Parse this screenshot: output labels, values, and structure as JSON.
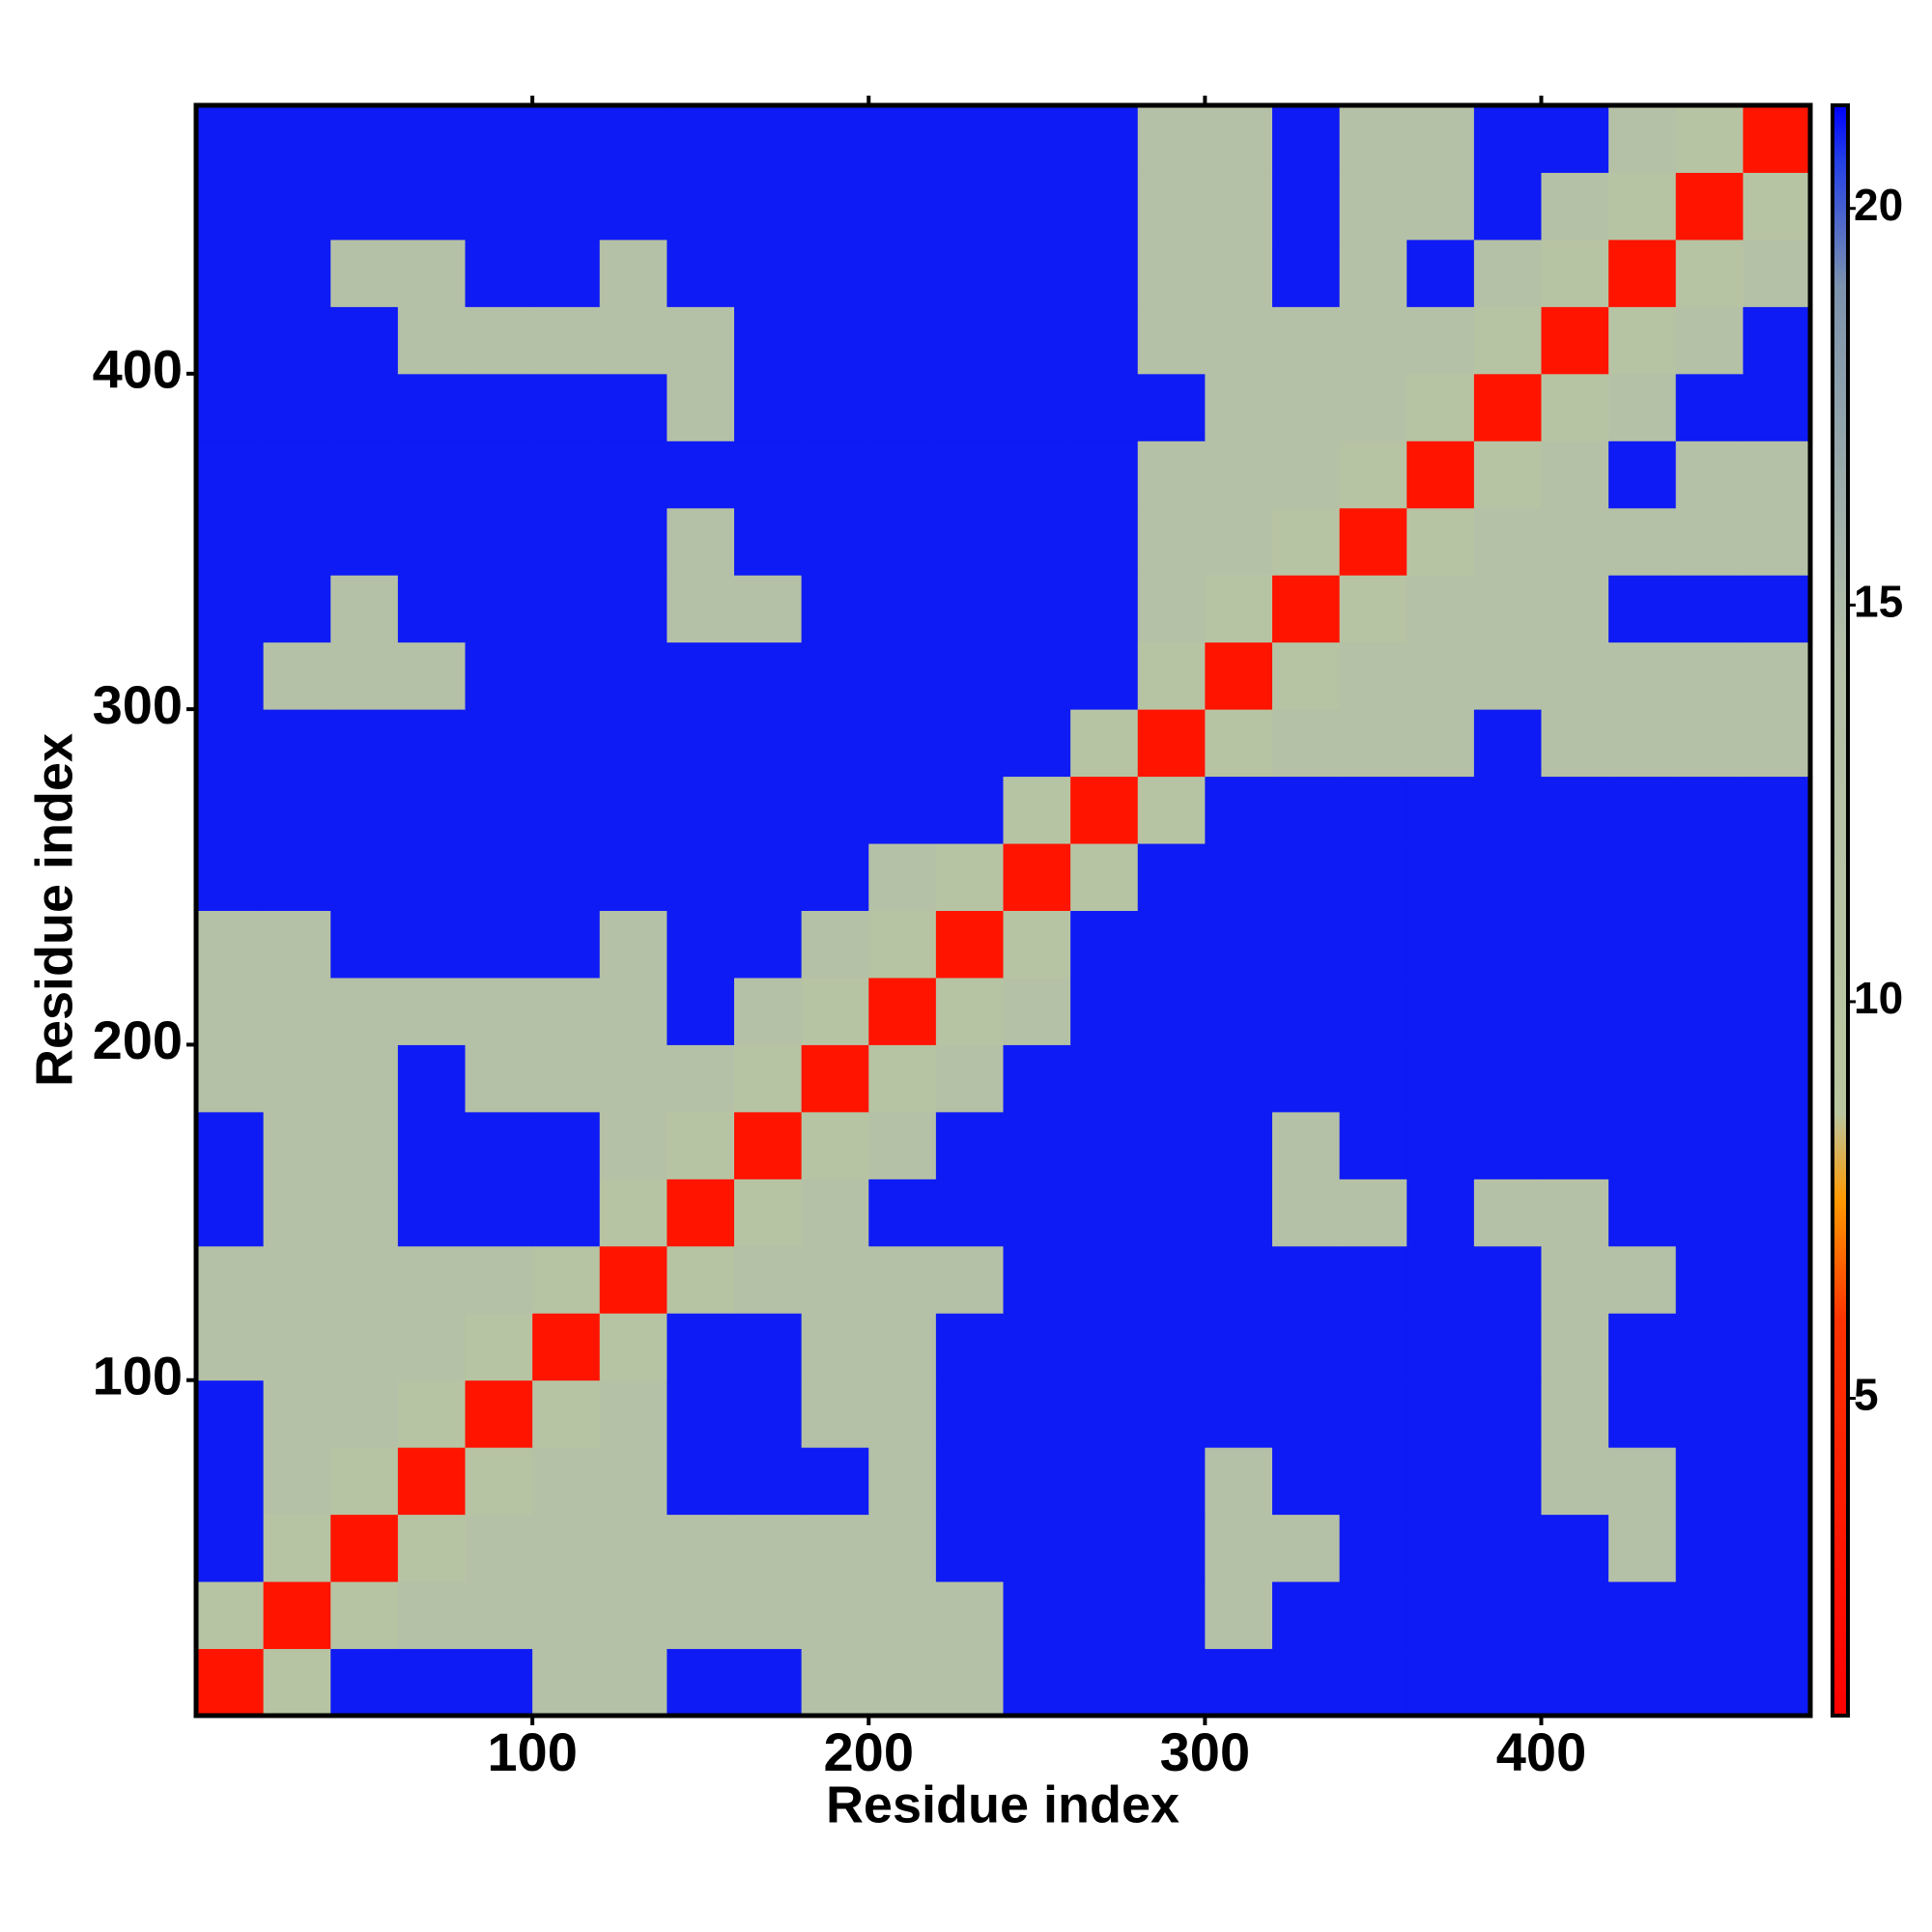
{
  "chart_data": {
    "type": "heatmap",
    "x_label": "Residue index",
    "y_label": "Residue index",
    "xlim": [
      0,
      480
    ],
    "ylim": [
      0,
      480
    ],
    "xticks": [
      100,
      200,
      300,
      400
    ],
    "yticks": [
      100,
      200,
      300,
      400
    ],
    "xbins": [
      0,
      20,
      40,
      60,
      80,
      100,
      120,
      140,
      160,
      180,
      200,
      220,
      240,
      260,
      280,
      300,
      320,
      340,
      360,
      380,
      400,
      420,
      440,
      460,
      480
    ],
    "ybins": [
      0,
      20,
      40,
      60,
      80,
      100,
      120,
      140,
      160,
      180,
      200,
      220,
      240,
      260,
      280,
      300,
      320,
      340,
      360,
      380,
      400,
      420,
      440,
      460,
      480
    ],
    "zlim": [
      1,
      21.3
    ],
    "zticks": [
      5,
      10,
      15,
      20
    ],
    "colorscale": [
      [
        1,
        "#ff0000"
      ],
      [
        6,
        "#ff3300"
      ],
      [
        7.5,
        "#ff9900"
      ],
      [
        8.6,
        "#b9c7a0"
      ],
      [
        14.5,
        "#b3bfa8"
      ],
      [
        19,
        "#7d93ad"
      ],
      [
        20.6,
        "#2340e6"
      ],
      [
        21.3,
        "#0000ff"
      ]
    ],
    "z": [
      [
        3,
        11,
        21,
        21,
        21,
        13,
        13,
        21,
        21,
        13,
        13,
        13,
        21,
        21,
        21,
        21,
        21,
        21,
        21,
        21,
        21,
        21,
        21,
        21
      ],
      [
        11,
        3,
        11,
        13,
        13,
        13,
        13,
        13,
        13,
        13,
        13,
        13,
        21,
        21,
        21,
        13,
        21,
        21,
        21,
        21,
        21,
        21,
        21,
        21
      ],
      [
        21,
        11,
        3,
        11,
        13,
        13,
        13,
        13,
        13,
        13,
        13,
        21,
        21,
        21,
        21,
        13,
        13,
        21,
        21,
        21,
        21,
        13,
        21,
        21
      ],
      [
        21,
        13,
        11,
        3,
        11,
        13,
        13,
        21,
        21,
        21,
        13,
        21,
        21,
        21,
        21,
        13,
        21,
        21,
        21,
        21,
        13,
        13,
        21,
        21
      ],
      [
        21,
        13,
        13,
        11,
        3,
        11,
        13,
        21,
        21,
        13,
        13,
        21,
        21,
        21,
        21,
        21,
        21,
        21,
        21,
        21,
        13,
        21,
        21,
        21
      ],
      [
        13,
        13,
        13,
        13,
        11,
        3,
        11,
        21,
        21,
        13,
        13,
        21,
        21,
        21,
        21,
        21,
        21,
        21,
        21,
        21,
        13,
        21,
        21,
        21
      ],
      [
        13,
        13,
        13,
        13,
        13,
        11,
        3,
        11,
        13,
        13,
        13,
        13,
        21,
        21,
        21,
        21,
        21,
        21,
        21,
        21,
        13,
        13,
        21,
        21
      ],
      [
        21,
        13,
        13,
        21,
        21,
        21,
        11,
        3,
        11,
        13,
        21,
        21,
        21,
        21,
        21,
        21,
        13,
        13,
        21,
        13,
        13,
        21,
        21,
        21
      ],
      [
        21,
        13,
        13,
        21,
        21,
        21,
        13,
        11,
        3,
        11,
        13,
        21,
        21,
        21,
        21,
        21,
        13,
        21,
        21,
        21,
        21,
        21,
        21,
        21
      ],
      [
        13,
        13,
        13,
        21,
        13,
        13,
        13,
        13,
        11,
        3,
        11,
        13,
        21,
        21,
        21,
        21,
        21,
        21,
        21,
        21,
        21,
        21,
        21,
        21
      ],
      [
        13,
        13,
        13,
        13,
        13,
        13,
        13,
        21,
        13,
        11,
        3,
        11,
        13,
        21,
        21,
        21,
        21,
        21,
        21,
        21,
        21,
        21,
        21,
        21
      ],
      [
        13,
        13,
        21,
        21,
        21,
        21,
        13,
        21,
        21,
        13,
        11,
        3,
        11,
        21,
        21,
        21,
        21,
        21,
        21,
        21,
        21,
        21,
        21,
        21
      ],
      [
        21,
        21,
        21,
        21,
        21,
        21,
        21,
        21,
        21,
        21,
        13,
        11,
        3,
        11,
        21,
        21,
        21,
        21,
        21,
        21,
        21,
        21,
        21,
        21
      ],
      [
        21,
        21,
        21,
        21,
        21,
        21,
        21,
        21,
        21,
        21,
        21,
        21,
        11,
        3,
        11,
        21,
        21,
        21,
        21,
        21,
        21,
        21,
        21,
        21
      ],
      [
        21,
        21,
        21,
        21,
        21,
        21,
        21,
        21,
        21,
        21,
        21,
        21,
        21,
        11,
        3,
        11,
        13,
        13,
        13,
        21,
        13,
        13,
        13,
        13
      ],
      [
        21,
        13,
        13,
        13,
        21,
        21,
        21,
        21,
        21,
        21,
        21,
        21,
        21,
        21,
        11,
        3,
        11,
        13,
        13,
        13,
        13,
        13,
        13,
        13
      ],
      [
        21,
        21,
        13,
        21,
        21,
        21,
        21,
        13,
        13,
        21,
        21,
        21,
        21,
        21,
        13,
        11,
        3,
        11,
        13,
        13,
        13,
        21,
        21,
        21
      ],
      [
        21,
        21,
        21,
        21,
        21,
        21,
        21,
        13,
        21,
        21,
        21,
        21,
        21,
        21,
        13,
        13,
        11,
        3,
        11,
        13,
        13,
        13,
        13,
        13
      ],
      [
        21,
        21,
        21,
        21,
        21,
        21,
        21,
        21,
        21,
        21,
        21,
        21,
        21,
        21,
        13,
        13,
        13,
        11,
        3,
        11,
        13,
        21,
        13,
        13
      ],
      [
        21,
        21,
        21,
        21,
        21,
        21,
        21,
        13,
        21,
        21,
        21,
        21,
        21,
        21,
        21,
        13,
        13,
        13,
        11,
        3,
        11,
        13,
        21,
        21
      ],
      [
        21,
        21,
        21,
        13,
        13,
        13,
        13,
        13,
        21,
        21,
        21,
        21,
        21,
        21,
        13,
        13,
        13,
        13,
        13,
        11,
        3,
        11,
        13,
        21
      ],
      [
        21,
        21,
        13,
        13,
        21,
        21,
        13,
        21,
        21,
        21,
        21,
        21,
        21,
        21,
        13,
        13,
        21,
        13,
        21,
        13,
        11,
        3,
        11,
        13
      ],
      [
        21,
        21,
        21,
        21,
        21,
        21,
        21,
        21,
        21,
        21,
        21,
        21,
        21,
        21,
        13,
        13,
        21,
        13,
        13,
        21,
        13,
        11,
        3,
        11
      ],
      [
        21,
        21,
        21,
        21,
        21,
        21,
        21,
        21,
        21,
        21,
        21,
        21,
        21,
        21,
        13,
        13,
        21,
        13,
        13,
        21,
        21,
        13,
        11,
        3
      ]
    ]
  }
}
